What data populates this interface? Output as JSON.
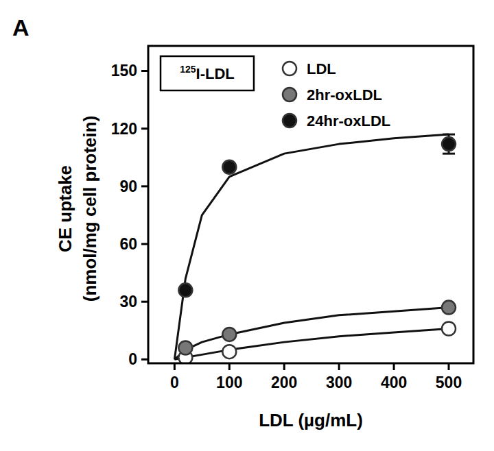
{
  "chart_data": {
    "type": "scatter",
    "panel_label": "A",
    "annotation": "125I-LDL",
    "x_label": "LDL (µg/mL)",
    "y_label": "CE uptake\n(nmol/mg cell protein)",
    "xlim": [
      -48,
      545
    ],
    "ylim": [
      -2,
      163
    ],
    "xticks": [
      0,
      100,
      200,
      300,
      400,
      500
    ],
    "yticks": [
      0,
      30,
      60,
      90,
      120,
      150
    ],
    "legend": "upper right",
    "marker": "circle",
    "x": [
      20,
      100,
      500
    ],
    "fit_x": [
      0,
      20,
      50,
      100,
      200,
      300,
      400,
      500
    ],
    "series": [
      {
        "name": "LDL",
        "color": "#ffffff",
        "values": [
          1,
          4,
          16
        ],
        "errors": [
          0,
          0,
          1
        ],
        "fit": [
          0,
          1,
          2.5,
          5,
          9,
          12,
          14,
          16
        ]
      },
      {
        "name": "2hr-oxLDL",
        "color": "#777777",
        "values": [
          6,
          13,
          27
        ],
        "errors": [
          0,
          0,
          1
        ],
        "fit": [
          0,
          5,
          9,
          13,
          19,
          23,
          25,
          27
        ]
      },
      {
        "name": "24hr-oxLDL",
        "color": "#111111",
        "values": [
          36,
          100,
          112
        ],
        "errors": [
          0,
          0,
          5
        ],
        "fit": [
          0,
          42,
          75,
          95,
          107,
          112,
          115,
          117
        ]
      }
    ]
  }
}
